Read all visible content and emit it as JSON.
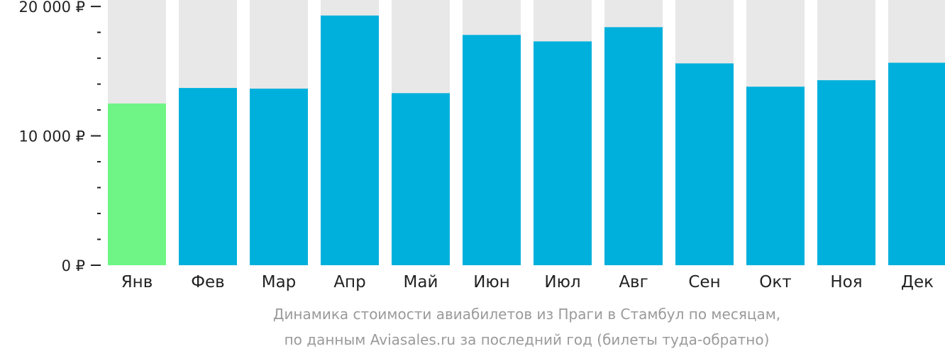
{
  "chart_data": {
    "type": "bar",
    "categories": [
      "Янв",
      "Фев",
      "Мар",
      "Апр",
      "Май",
      "Июн",
      "Июл",
      "Авг",
      "Сен",
      "Окт",
      "Ноя",
      "Дек"
    ],
    "values": [
      12500,
      13700,
      13650,
      19300,
      13300,
      17800,
      17300,
      18400,
      15600,
      13800,
      14300,
      15650
    ],
    "ylim": [
      0,
      20500
    ],
    "y_ticks": [
      0,
      10000,
      20000
    ],
    "y_tick_labels": [
      "0 ₽",
      "10 000 ₽",
      "20 000 ₽"
    ],
    "minor_tick_step": 2000,
    "highlight_index": 0,
    "colors": {
      "bar": "#00b0dc",
      "highlight": "#6ef585",
      "background_track": "#e8e8e8"
    }
  },
  "caption": {
    "line1": "Динамика стоимости авиабилетов из Праги в Стамбул по месяцам,",
    "line2": "по данным Aviasales.ru за последний год (билеты туда-обратно)"
  }
}
